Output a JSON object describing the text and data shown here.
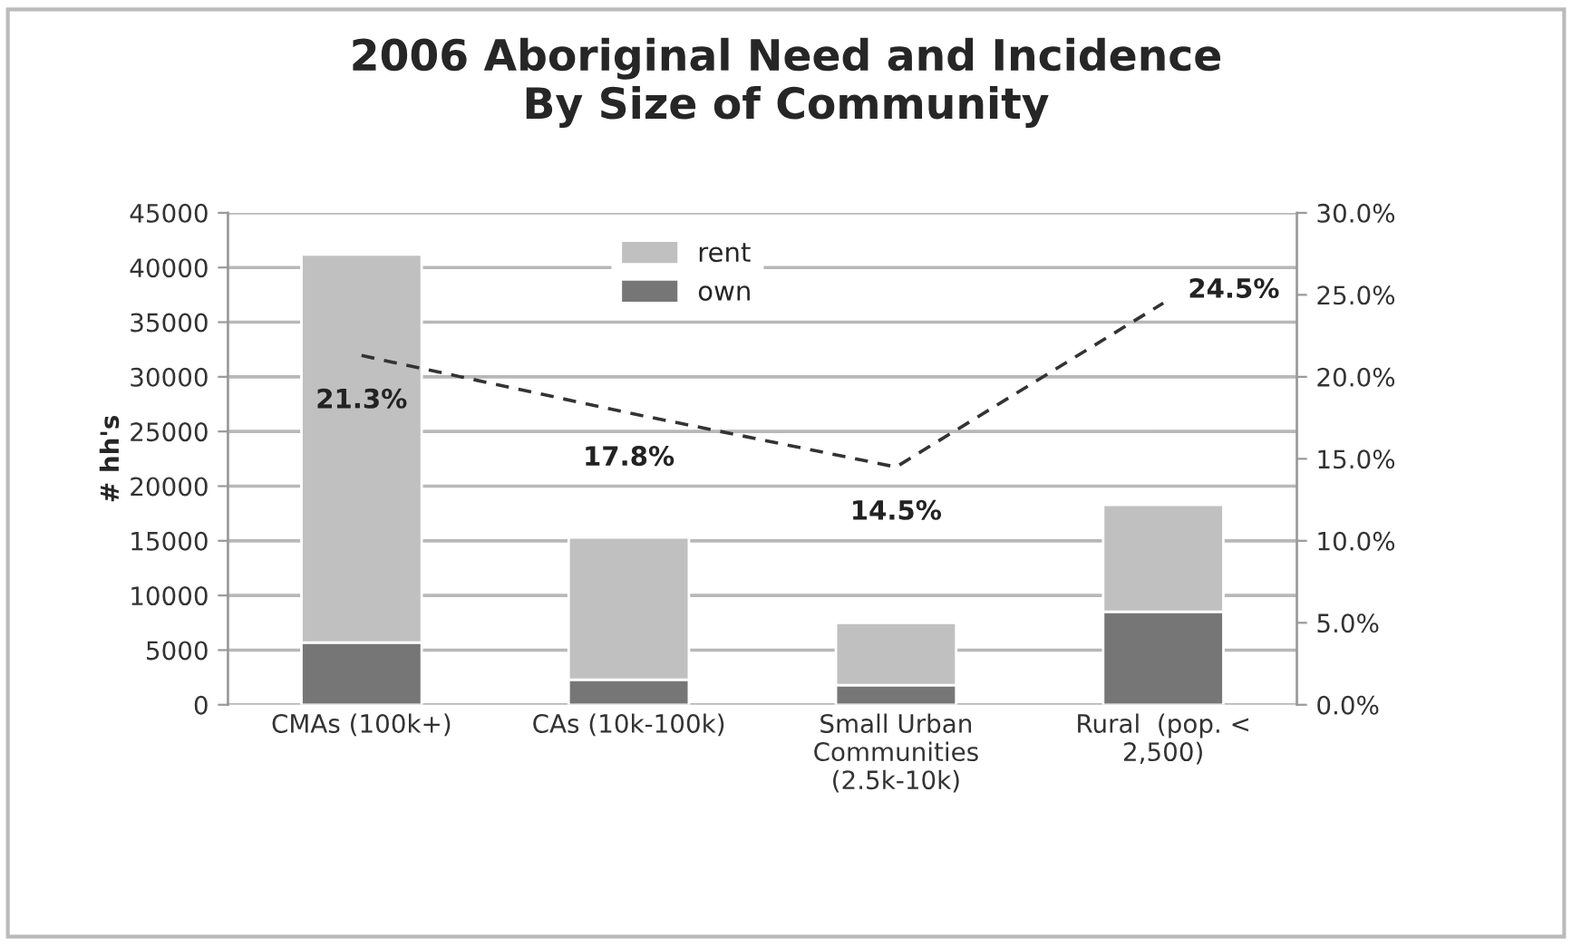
{
  "chart_data": {
    "type": "bar",
    "title": "2006 Aboriginal Need and Incidence\nBy Size of Community",
    "ylabel": "# hh's",
    "categories": [
      "CMAs (100k+)",
      "CAs (10k-100k)",
      "Small Urban\nCommunities\n(2.5k-10k)",
      "Rural  (pop. <\n2,500)"
    ],
    "stacked": true,
    "series": [
      {
        "name": "own",
        "color": "#767676",
        "values": [
          5700,
          2300,
          1800,
          8500
        ]
      },
      {
        "name": "rent",
        "color": "#c0c0c0",
        "values": [
          35500,
          13000,
          5700,
          9800
        ]
      },
      {
        "type": "line",
        "axis": "y2",
        "color": "#333333",
        "line_style": "dashed",
        "marker": "none",
        "values": [
          21.3,
          17.8,
          14.5,
          24.5
        ],
        "value_labels": [
          "21.3%",
          "17.8%",
          "14.5%",
          "24.5%"
        ]
      }
    ],
    "ylim": [
      0,
      45000
    ],
    "yticks": [
      0,
      5000,
      10000,
      15000,
      20000,
      25000,
      30000,
      35000,
      40000,
      45000
    ],
    "y2lim": [
      0,
      30
    ],
    "y2ticks": [
      {
        "value": 0,
        "label": "0.0%"
      },
      {
        "value": 5,
        "label": "5.0%"
      },
      {
        "value": 10,
        "label": "10.0%"
      },
      {
        "value": 15,
        "label": "15.0%"
      },
      {
        "value": 20,
        "label": "20.0%"
      },
      {
        "value": 25,
        "label": "25.0%"
      },
      {
        "value": 30,
        "label": "30.0%"
      }
    ],
    "grid": "y",
    "legend": "top"
  }
}
